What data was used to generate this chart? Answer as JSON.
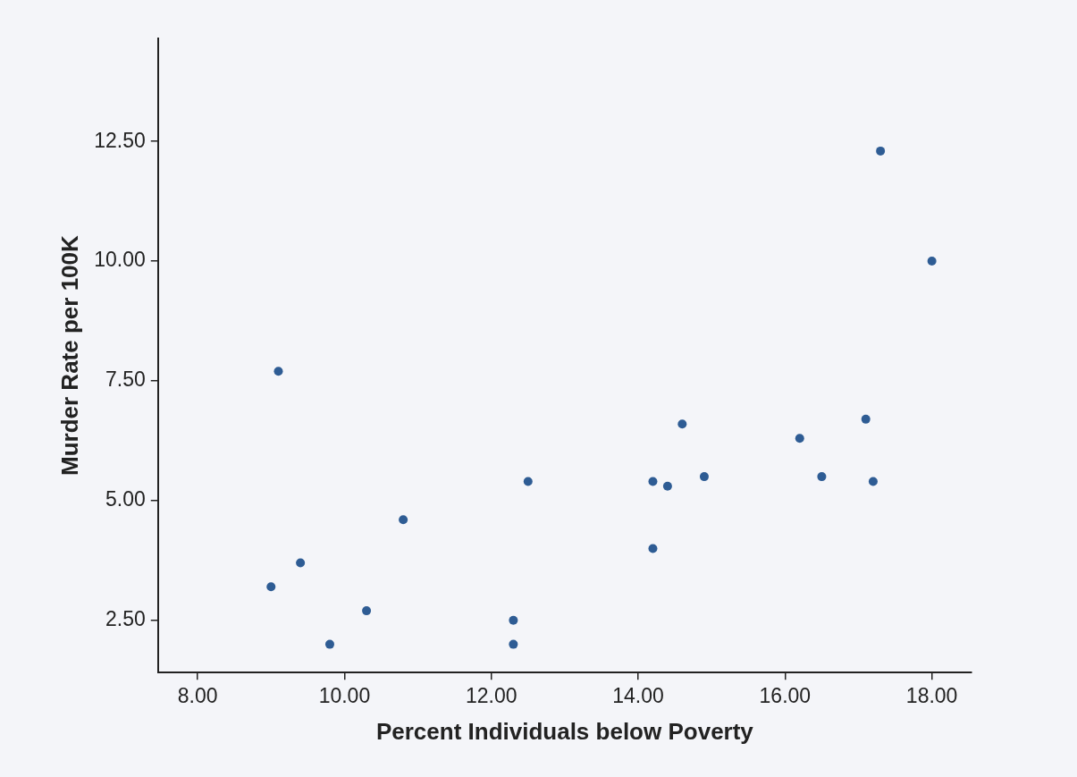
{
  "chart_data": {
    "type": "scatter",
    "xlabel": "Percent Individuals below Poverty",
    "ylabel": "Murder Rate per 100K",
    "x": [
      18.0,
      17.3,
      9.1,
      17.1,
      14.6,
      16.2,
      16.5,
      14.9,
      17.2,
      14.2,
      14.4,
      12.5,
      10.8,
      14.2,
      9.4,
      9.0,
      10.3,
      12.3,
      9.8,
      12.3
    ],
    "values": [
      10.0,
      12.3,
      7.7,
      6.7,
      6.6,
      6.3,
      5.5,
      5.5,
      5.4,
      5.4,
      5.3,
      5.4,
      4.6,
      4.0,
      3.7,
      3.2,
      2.7,
      2.5,
      2.0,
      2.0
    ],
    "color": "#2e5c94",
    "marker": "circle",
    "grid": false,
    "legend": false,
    "xlim": [
      7.46,
      18.54
    ],
    "ylim": [
      1.41,
      14.65
    ],
    "xticks": [
      {
        "value": 8,
        "label": "8.00"
      },
      {
        "value": 10,
        "label": "10.00"
      },
      {
        "value": 12,
        "label": "12.00"
      },
      {
        "value": 14,
        "label": "14.00"
      },
      {
        "value": 16,
        "label": "16.00"
      },
      {
        "value": 18,
        "label": "18.00"
      }
    ],
    "yticks": [
      {
        "value": 2.5,
        "label": "2.50"
      },
      {
        "value": 5,
        "label": "5.00"
      },
      {
        "value": 7.5,
        "label": "7.50"
      },
      {
        "value": 10,
        "label": "10.00"
      },
      {
        "value": 12.5,
        "label": "12.50"
      }
    ]
  }
}
